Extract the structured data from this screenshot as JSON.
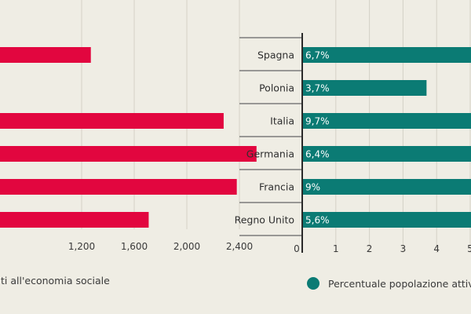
{
  "chart_data": [
    {
      "type": "bar",
      "orientation": "horizontal",
      "color": "#e2063f",
      "categories": [
        "Spagna",
        "Polonia",
        "Italia",
        "Germania",
        "Francia",
        "Regno Unito"
      ],
      "values": [
        1270,
        null,
        2280,
        2530,
        2380,
        1710
      ],
      "x_ticks": [
        "1,200",
        "1,600",
        "2,000",
        "2,400"
      ],
      "xlim": [
        800,
        2800
      ],
      "grid": true,
      "legend": [
        {
          "label": "ti all'economia sociale",
          "position": "bottom"
        }
      ]
    },
    {
      "type": "bar",
      "orientation": "horizontal",
      "color": "#0b7b74",
      "categories": [
        "Spagna",
        "Polonia",
        "Italia",
        "Germania",
        "Francia",
        "Regno Unito"
      ],
      "values": [
        6.7,
        3.7,
        9.7,
        6.4,
        9,
        5.6
      ],
      "value_labels": [
        "6,7%",
        "3,7%",
        "9,7%",
        "6,4%",
        "9%",
        "5,6%"
      ],
      "x_ticks": [
        "0",
        "1",
        "2",
        "3",
        "4",
        "5"
      ],
      "xlim": [
        0,
        10
      ],
      "grid": true,
      "legend": [
        {
          "label": "Percentuale popolazione attiva n",
          "position": "bottom",
          "marker": "circle"
        }
      ]
    }
  ]
}
